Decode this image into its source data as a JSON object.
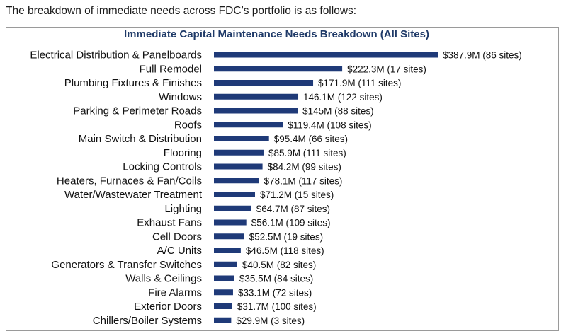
{
  "intro_text": "The breakdown of immediate needs across FDC’s portfolio is as follows:",
  "colors": {
    "bar": "#1f3a78",
    "title": "#1f3a68"
  },
  "chart_data": {
    "type": "bar",
    "orientation": "horizontal",
    "title": "Immediate Capital Maintenance Needs Breakdown (All Sites)",
    "xlabel": "",
    "ylabel": "",
    "unit": "$M",
    "grid": false,
    "legend": "none",
    "xlim": [
      0,
      387.9
    ],
    "categories": [
      "Electrical Distribution & Panelboards",
      "Full Remodel",
      "Plumbing Fixtures & Finishes",
      "Windows",
      "Parking & Perimeter Roads",
      "Roofs",
      "Main Switch & Distribution",
      "Flooring",
      "Locking Controls",
      "Heaters, Furnaces & Fan/Coils",
      "Water/Wastewater Treatment",
      "Lighting",
      "Exhaust Fans",
      "Cell Doors",
      "A/C Units",
      "Generators & Transfer Switches",
      "Walls & Ceilings",
      "Fire Alarms",
      "Exterior Doors",
      "Chillers/Boiler Systems"
    ],
    "values": [
      387.9,
      222.3,
      171.9,
      146.1,
      145,
      119.4,
      95.4,
      85.9,
      84.2,
      78.1,
      71.2,
      64.7,
      56.1,
      52.5,
      46.5,
      40.5,
      35.5,
      33.1,
      31.7,
      29.9
    ],
    "labels": [
      "$387.9M (86 sites)",
      "$222.3M (17 sites)",
      "$171.9M (111 sites)",
      "146.1M (122 sites)",
      "$145M (88 sites)",
      "$119.4M (108 sites)",
      "$95.4M (66 sites)",
      "$85.9M (111 sites)",
      "$84.2M (99 sites)",
      "$78.1M (117 sites)",
      "$71.2M (15 sites)",
      "$64.7M (87 sites)",
      "$56.1M (109 sites)",
      "$52.5M (19 sites)",
      "$46.5M (118 sites)",
      "$40.5M (82 sites)",
      "$35.5M (84 sites)",
      "$33.1M (72 sites)",
      "$31.7M (100 sites)",
      "$29.9M (3 sites)"
    ]
  }
}
